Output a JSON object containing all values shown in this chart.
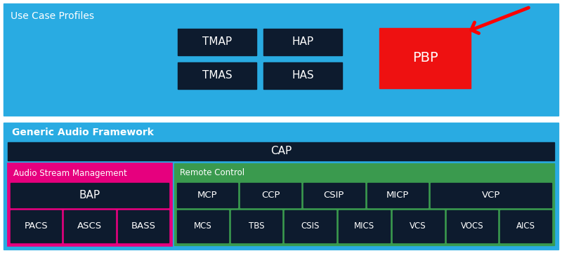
{
  "bg_color": "#ffffff",
  "sky_blue": "#29abe2",
  "dark_navy": "#0d1b2e",
  "red": "#ee1111",
  "magenta": "#e6007e",
  "green": "#3a9a4e",
  "white": "#ffffff",
  "green_text": "#3a9a4e",
  "top_label": "Use Case Profiles",
  "bottom_label": "Generic Audio Framework",
  "top_boxes": [
    {
      "label": "TMAP",
      "col": 0,
      "row": 0
    },
    {
      "label": "HAP",
      "col": 1,
      "row": 0
    },
    {
      "label": "TMAS",
      "col": 0,
      "row": 1
    },
    {
      "label": "HAS",
      "col": 1,
      "row": 1
    }
  ],
  "pbp_label": "PBP",
  "cap_label": "CAP",
  "asm_label": "Audio Stream Management",
  "rc_label": "Remote Control",
  "bap_label": "BAP",
  "asm_bottom": [
    "PACS",
    "ASCS",
    "BASS"
  ],
  "rc_top": [
    "MCP",
    "CCP",
    "CSIP",
    "MICP",
    "VCP"
  ],
  "rc_top_widths": [
    1,
    1,
    1,
    1,
    2
  ],
  "rc_bottom": [
    "MCS",
    "TBS",
    "CSIS",
    "MICS",
    "VCS",
    "VOCS",
    "AICS"
  ]
}
